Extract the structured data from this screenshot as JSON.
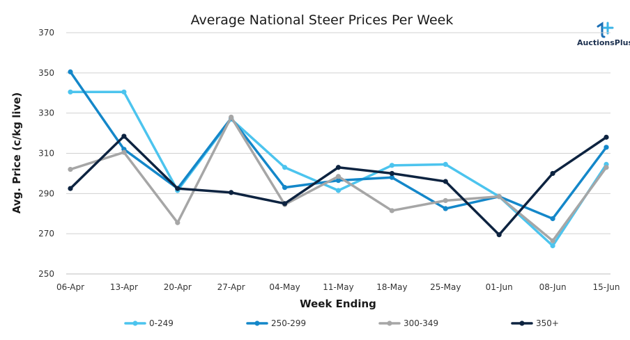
{
  "chart_data": {
    "type": "line",
    "title": "Average National Steer Prices Per Week",
    "xlabel": "Week Ending",
    "ylabel": "Avg. Price (c/kg live)",
    "categories": [
      "06-Apr",
      "13-Apr",
      "20-Apr",
      "27-Apr",
      "04-May",
      "11-May",
      "18-May",
      "25-May",
      "01-Jun",
      "08-Jun",
      "15-Jun"
    ],
    "ylim": [
      250,
      370
    ],
    "yticks": [
      250,
      270,
      290,
      310,
      330,
      350,
      370
    ],
    "grid": "horizontal",
    "legend_position": "bottom",
    "series": [
      {
        "name": "0-249",
        "color": "#4cc4ee",
        "values": [
          340.5,
          340.5,
          291.5,
          327,
          303,
          291.5,
          304,
          304.5,
          288.5,
          264,
          304.5
        ]
      },
      {
        "name": "250-299",
        "color": "#1487c9",
        "values": [
          350.5,
          312,
          292.5,
          327.5,
          293,
          296.5,
          298,
          282.5,
          288.5,
          277.5,
          313
        ]
      },
      {
        "name": "300-349",
        "color": "#a6a6a6",
        "values": [
          302,
          310.5,
          275.5,
          328,
          284.5,
          298.5,
          281.5,
          286.5,
          288.5,
          266.5,
          303
        ]
      },
      {
        "name": "350+",
        "color": "#0d2340",
        "values": [
          292.5,
          318.5,
          292.5,
          290.5,
          285,
          303,
          300,
          296,
          269.5,
          300,
          318
        ]
      }
    ]
  },
  "logo": {
    "text": "AuctionsPlus",
    "icon": "auctionsplus-logo-icon"
  }
}
